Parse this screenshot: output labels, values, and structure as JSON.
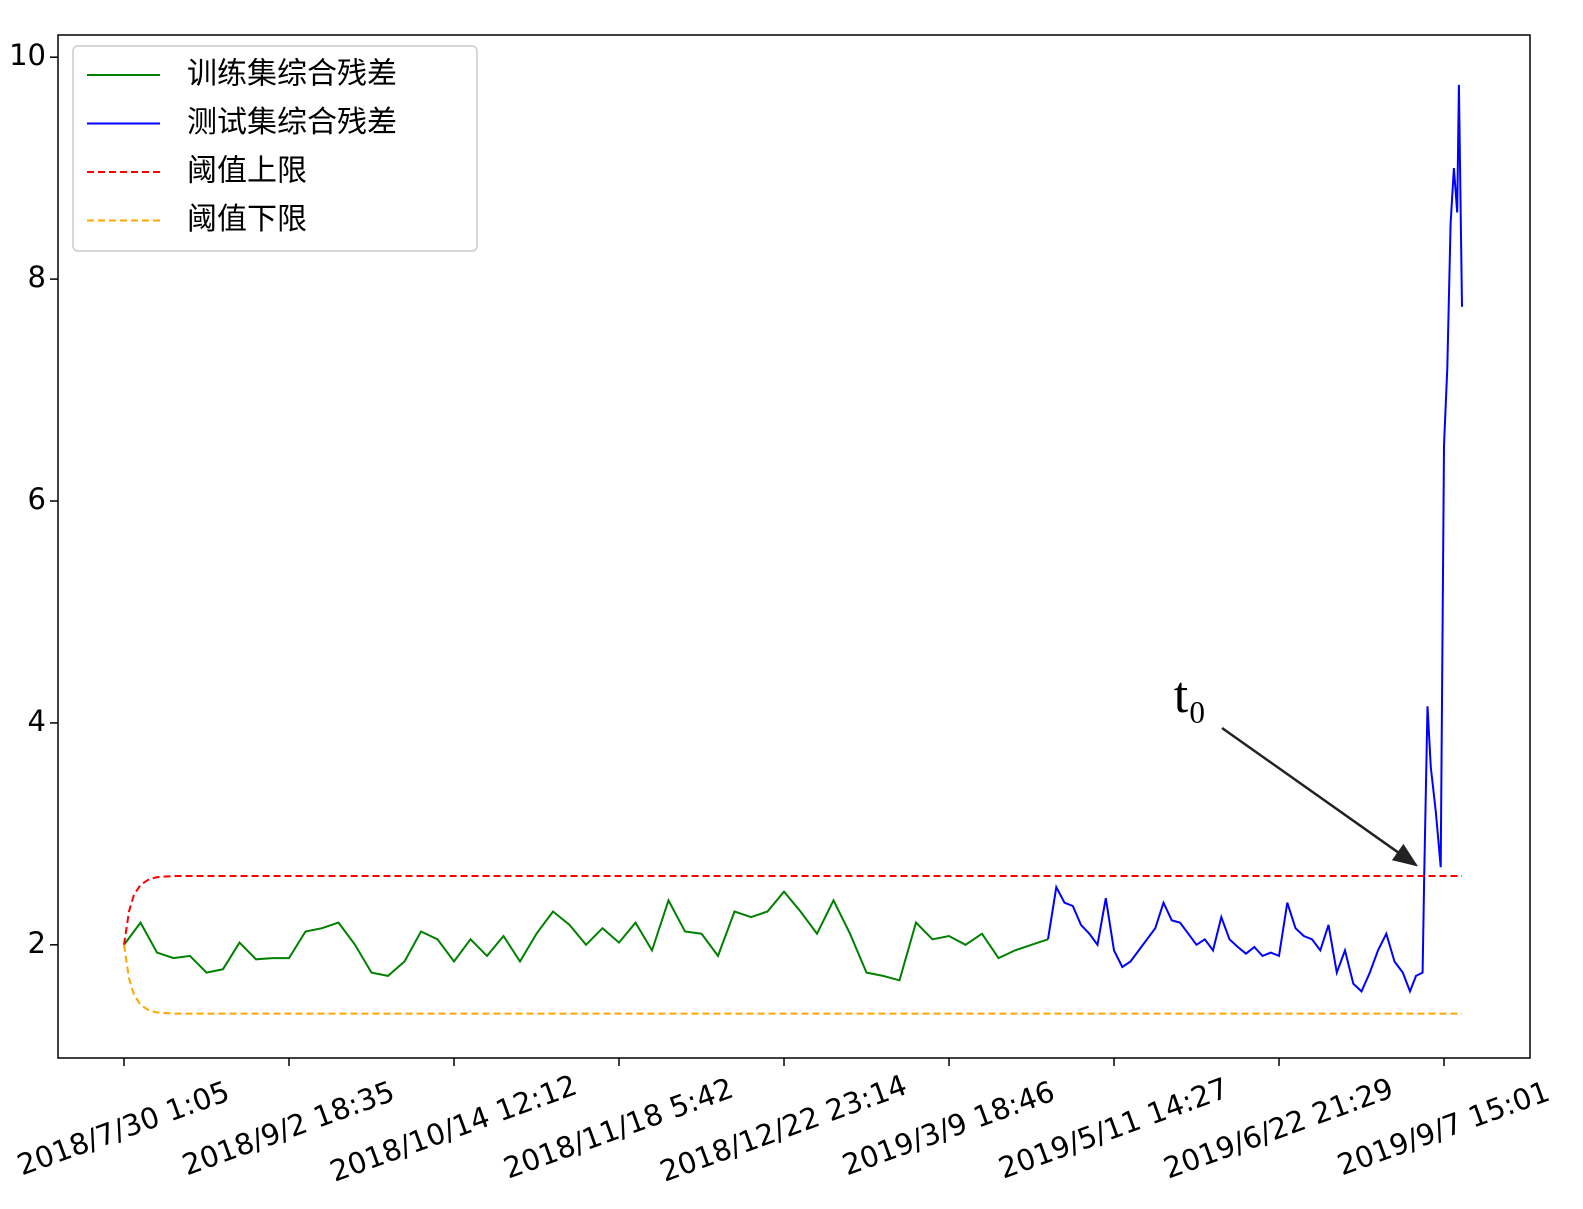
{
  "chart_data": {
    "type": "line",
    "xlim": [
      -400,
      8521
    ],
    "ylim": [
      0.98,
      10.2
    ],
    "xticks": [
      {
        "value": 0,
        "label": "2018/7/30 1:05"
      },
      {
        "value": 1000,
        "label": "2018/9/2 18:35"
      },
      {
        "value": 2000,
        "label": "2018/10/14 12:12"
      },
      {
        "value": 3000,
        "label": "2018/11/18 5:42"
      },
      {
        "value": 4000,
        "label": "2018/12/22 23:14"
      },
      {
        "value": 5000,
        "label": "2019/3/9 18:46"
      },
      {
        "value": 6000,
        "label": "2019/5/11 14:27"
      },
      {
        "value": 7000,
        "label": "2019/6/22 21:29"
      },
      {
        "value": 8000,
        "label": "2019/9/7 15:01"
      }
    ],
    "yticks": [
      2,
      4,
      6,
      8,
      10
    ],
    "legend": "upper left",
    "annotation": "t₀",
    "series": [
      {
        "name": "训练集综合残差",
        "color": "green",
        "dash": false,
        "x": [
          0,
          100,
          200,
          300,
          400,
          500,
          600,
          700,
          800,
          900,
          1000,
          1100,
          1200,
          1300,
          1400,
          1500,
          1600,
          1700,
          1800,
          1900,
          2000,
          2100,
          2200,
          2300,
          2400,
          2500,
          2600,
          2700,
          2800,
          2900,
          3000,
          3100,
          3200,
          3300,
          3400,
          3500,
          3600,
          3700,
          3800,
          3900,
          4000,
          4100,
          4200,
          4300,
          4400,
          4500,
          4600,
          4700,
          4800,
          4900,
          5000,
          5100,
          5200,
          5300,
          5400,
          5500,
          5600
        ],
        "values": [
          2.0,
          2.2,
          1.93,
          1.88,
          1.9,
          1.75,
          1.78,
          2.02,
          1.87,
          1.88,
          1.88,
          2.12,
          2.15,
          2.2,
          2.0,
          1.75,
          1.72,
          1.85,
          2.12,
          2.05,
          1.85,
          2.05,
          1.9,
          2.08,
          1.85,
          2.1,
          2.3,
          2.18,
          2.0,
          2.15,
          2.02,
          2.2,
          1.95,
          2.4,
          2.12,
          2.1,
          1.9,
          2.3,
          2.25,
          2.3,
          2.48,
          2.3,
          2.1,
          2.4,
          2.1,
          1.75,
          1.72,
          1.68,
          2.2,
          2.05,
          2.08,
          2.0,
          2.1,
          1.88,
          1.95,
          2.0,
          2.05
        ]
      },
      {
        "name": "测试集综合残差",
        "color": "blue",
        "dash": false,
        "x": [
          5600,
          5650,
          5700,
          5750,
          5800,
          5850,
          5900,
          5950,
          6000,
          6050,
          6100,
          6150,
          6200,
          6250,
          6300,
          6350,
          6400,
          6450,
          6500,
          6550,
          6600,
          6650,
          6700,
          6750,
          6800,
          6850,
          6900,
          6950,
          7000,
          7050,
          7100,
          7150,
          7200,
          7250,
          7300,
          7350,
          7400,
          7450,
          7500,
          7550,
          7600,
          7650,
          7700,
          7750,
          7794,
          7830,
          7870,
          7880,
          7900,
          7920,
          7950,
          7980,
          8000,
          8020,
          8040,
          8060,
          8080,
          8090,
          8109
        ],
        "values": [
          2.05,
          2.52,
          2.38,
          2.35,
          2.18,
          2.1,
          2.0,
          2.42,
          1.95,
          1.8,
          1.85,
          1.95,
          2.05,
          2.15,
          2.38,
          2.22,
          2.2,
          2.1,
          2.0,
          2.05,
          1.95,
          2.25,
          2.05,
          1.98,
          1.92,
          1.98,
          1.9,
          1.93,
          1.9,
          2.38,
          2.15,
          2.08,
          2.05,
          1.95,
          2.18,
          1.75,
          1.95,
          1.65,
          1.58,
          1.75,
          1.95,
          2.1,
          1.85,
          1.75,
          1.58,
          1.72,
          1.75,
          2.62,
          4.15,
          3.6,
          3.2,
          2.7,
          6.5,
          7.2,
          8.5,
          9.0,
          8.6,
          9.75,
          7.75
        ]
      },
      {
        "name": "阈值上限",
        "color": "red",
        "dash": true,
        "x": [
          0,
          30,
          60,
          100,
          150,
          200,
          300,
          8109
        ],
        "values": [
          2.0,
          2.3,
          2.45,
          2.54,
          2.59,
          2.61,
          2.62,
          2.62
        ]
      },
      {
        "name": "阈值下限",
        "color": "orange",
        "dash": true,
        "x": [
          0,
          30,
          60,
          100,
          150,
          200,
          300,
          8109
        ],
        "values": [
          2.0,
          1.7,
          1.55,
          1.46,
          1.41,
          1.39,
          1.38,
          1.38
        ]
      }
    ]
  }
}
